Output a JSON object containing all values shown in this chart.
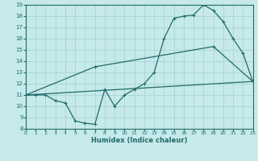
{
  "xlabel": "Humidex (Indice chaleur)",
  "xlim": [
    0,
    23
  ],
  "ylim": [
    8,
    19
  ],
  "xticks": [
    0,
    1,
    2,
    3,
    4,
    5,
    6,
    7,
    8,
    9,
    10,
    11,
    12,
    13,
    14,
    15,
    16,
    17,
    18,
    19,
    20,
    21,
    22,
    23
  ],
  "yticks": [
    8,
    9,
    10,
    11,
    12,
    13,
    14,
    15,
    16,
    17,
    18,
    19
  ],
  "bg_color": "#c6e9e9",
  "line_color": "#216b6b",
  "grid_color": "#aad4d4",
  "line1_x": [
    0,
    1,
    2,
    3,
    4,
    5,
    6,
    7,
    8,
    9,
    10,
    11,
    12,
    13,
    14,
    15,
    16,
    17,
    18,
    19,
    20,
    21,
    22,
    23
  ],
  "line1_y": [
    11,
    11,
    11,
    10.5,
    10.3,
    8.7,
    8.5,
    8.4,
    11.5,
    10,
    11,
    11.5,
    12,
    13,
    16.0,
    17.8,
    18,
    18.1,
    19,
    18.5,
    17.5,
    16.0,
    14.7,
    12.2
  ],
  "line2_x": [
    0,
    23
  ],
  "line2_y": [
    11,
    12.2
  ],
  "line3_x": [
    0,
    7,
    19,
    23
  ],
  "line3_y": [
    11,
    13.5,
    15.3,
    12.2
  ]
}
